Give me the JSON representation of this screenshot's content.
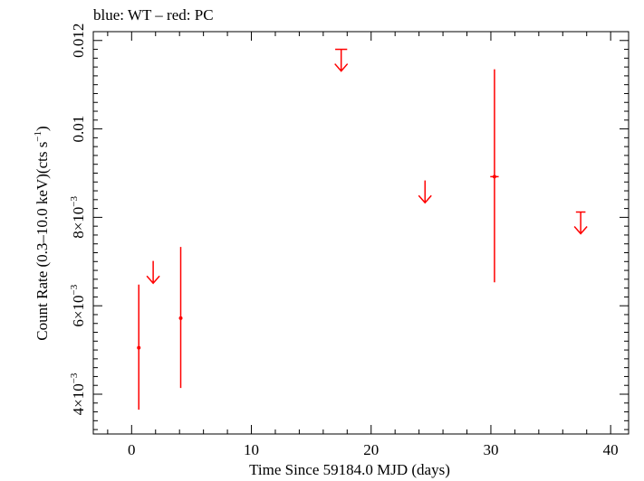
{
  "chart_data": {
    "type": "scatter",
    "title": "blue: WT – red: PC",
    "xlabel": "Time Since 59184.0 MJD (days)",
    "ylabel_main": "Count Rate (0.3–10.0 keV)(cts s",
    "ylabel_sup": "−1",
    "ylabel_end": ")",
    "xlim": [
      -3.2,
      41.5
    ],
    "ylim": [
      0.0031,
      0.0122
    ],
    "x_ticks": [
      {
        "value": 0,
        "label": "0"
      },
      {
        "value": 10,
        "label": "10"
      },
      {
        "value": 20,
        "label": "20"
      },
      {
        "value": 30,
        "label": "30"
      },
      {
        "value": 40,
        "label": "40"
      }
    ],
    "y_ticks": [
      {
        "value": 0.004,
        "mant": "4×10",
        "exp": "−3"
      },
      {
        "value": 0.006,
        "mant": "6×10",
        "exp": "−3"
      },
      {
        "value": 0.008,
        "mant": "8×10",
        "exp": "−3"
      },
      {
        "value": 0.01,
        "mant": "0.01",
        "exp": ""
      },
      {
        "value": 0.012,
        "mant": "0.012",
        "exp": ""
      }
    ],
    "series": [
      {
        "color": "#ff0000",
        "points": [
          {
            "x": 0.6,
            "xerr": 0.05,
            "y": 0.00505,
            "ylo": 0.00365,
            "yhi": 0.00648
          },
          {
            "x": 4.1,
            "xerr": 0.05,
            "y": 0.00572,
            "ylo": 0.00414,
            "yhi": 0.00733
          },
          {
            "x": 30.3,
            "xerr": 0.35,
            "y": 0.00892,
            "ylo": 0.00653,
            "yhi": 0.01135
          }
        ],
        "upper_limits": [
          {
            "x": 1.8,
            "xerr": 0.05,
            "y": 0.007
          },
          {
            "x": 17.5,
            "xerr": 0.5,
            "y": 0.0118
          },
          {
            "x": 24.5,
            "xerr": 0.05,
            "y": 0.00882
          },
          {
            "x": 37.5,
            "xerr": 0.4,
            "y": 0.00812
          }
        ]
      }
    ]
  }
}
